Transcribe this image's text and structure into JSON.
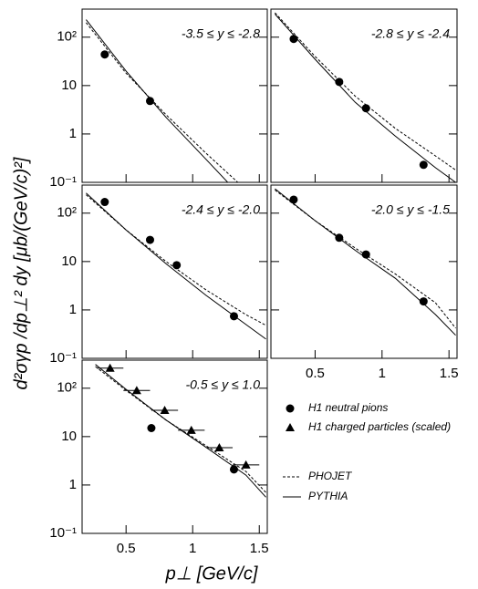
{
  "chart_data": [
    {
      "type": "line",
      "annotation": "-3.5 ≤ y ≤ -2.8",
      "xlim": [
        0.17,
        1.56
      ],
      "ylim": [
        0.1,
        380
      ],
      "log_y": true,
      "xticks": [
        0.5,
        1,
        1.5
      ],
      "yticks": [
        {
          "value": 100,
          "label": "10²"
        },
        10,
        1,
        {
          "value": 0.1,
          "label": "10⁻¹"
        }
      ],
      "ytick_labels": true,
      "xtick_labels": false,
      "series": [
        {
          "name": "PHOJET",
          "color": "#000000",
          "line_style": "dashed",
          "x": [
            0.2,
            0.5,
            0.8,
            1.1,
            1.4
          ],
          "values": [
            200,
            18,
            2.5,
            0.4,
            0.07
          ]
        },
        {
          "name": "PYTHIA",
          "color": "#000000",
          "line_style": "solid",
          "x": [
            0.2,
            0.5,
            0.8,
            1.1,
            1.4
          ],
          "values": [
            230,
            20,
            2.2,
            0.3,
            0.04
          ]
        },
        {
          "name": "H1 neutral pions",
          "color": "#000000",
          "marker": "circle",
          "x": [
            0.34,
            0.68
          ],
          "values": [
            44,
            4.8
          ]
        }
      ]
    },
    {
      "type": "line",
      "annotation": "-2.8 ≤ y ≤ -2.4",
      "xlim": [
        0.17,
        1.56
      ],
      "ylim": [
        0.1,
        380
      ],
      "log_y": true,
      "xticks": [
        0.5,
        1,
        1.5
      ],
      "yticks": [
        {
          "value": 100,
          "label": "10²"
        },
        10,
        1,
        {
          "value": 0.1,
          "label": "10⁻¹"
        }
      ],
      "ytick_labels": false,
      "xtick_labels": false,
      "series": [
        {
          "name": "PHOJET",
          "color": "#000000",
          "line_style": "dashed",
          "x": [
            0.2,
            0.5,
            0.8,
            1.1,
            1.4,
            1.55
          ],
          "values": [
            320,
            40,
            6,
            1.3,
            0.35,
            0.18
          ]
        },
        {
          "name": "PYTHIA",
          "color": "#000000",
          "line_style": "solid",
          "x": [
            0.2,
            0.5,
            0.8,
            1.1,
            1.4,
            1.55
          ],
          "values": [
            300,
            35,
            4.5,
            0.9,
            0.2,
            0.1
          ]
        },
        {
          "name": "H1 neutral pions",
          "color": "#000000",
          "marker": "circle",
          "x": [
            0.34,
            0.68,
            0.88,
            1.31
          ],
          "values": [
            92,
            11.9,
            3.4,
            0.23
          ]
        }
      ]
    },
    {
      "type": "line",
      "annotation": "-2.4 ≤ y ≤ -2.0",
      "xlim": [
        0.17,
        1.56
      ],
      "ylim": [
        0.1,
        380
      ],
      "log_y": true,
      "xticks": [
        0.5,
        1,
        1.5
      ],
      "yticks": [
        {
          "value": 100,
          "label": "10²"
        },
        10,
        1,
        {
          "value": 0.1,
          "label": "10⁻¹"
        }
      ],
      "ytick_labels": true,
      "xtick_labels": false,
      "series": [
        {
          "name": "PHOJET",
          "color": "#000000",
          "line_style": "dashed",
          "x": [
            0.2,
            0.5,
            0.8,
            1.1,
            1.4,
            1.55
          ],
          "values": [
            240,
            45,
            10,
            2.6,
            0.8,
            0.48
          ]
        },
        {
          "name": "PYTHIA",
          "color": "#000000",
          "line_style": "solid",
          "x": [
            0.2,
            0.5,
            0.8,
            1.1,
            1.4,
            1.55
          ],
          "values": [
            260,
            45,
            9,
            2,
            0.5,
            0.25
          ]
        },
        {
          "name": "H1 neutral pions",
          "color": "#000000",
          "marker": "circle",
          "x": [
            0.34,
            0.68,
            0.88,
            1.31
          ],
          "values": [
            170,
            28,
            8.4,
            0.74
          ]
        }
      ]
    },
    {
      "type": "line",
      "annotation": "-2.0 ≤ y ≤ -1.5",
      "xlim": [
        0.17,
        1.56
      ],
      "ylim": [
        0.1,
        380
      ],
      "log_y": true,
      "xticks": [
        0.5,
        1,
        1.5
      ],
      "yticks": [
        {
          "value": 100,
          "label": "10²"
        },
        10,
        1,
        {
          "value": 0.1,
          "label": "10⁻¹"
        }
      ],
      "ytick_labels": false,
      "xtick_labels": true,
      "series": [
        {
          "name": "PHOJET",
          "color": "#000000",
          "line_style": "dashed",
          "x": [
            0.2,
            0.5,
            0.8,
            1.1,
            1.4,
            1.55
          ],
          "values": [
            300,
            70,
            19,
            5.5,
            1.4,
            0.42
          ]
        },
        {
          "name": "PYTHIA",
          "color": "#000000",
          "line_style": "solid",
          "x": [
            0.2,
            0.5,
            0.8,
            1.1,
            1.4,
            1.55
          ],
          "values": [
            320,
            70,
            17,
            4.5,
            0.8,
            0.3
          ]
        },
        {
          "name": "H1 neutral pions",
          "color": "#000000",
          "marker": "circle",
          "x": [
            0.34,
            0.68,
            0.88,
            1.31
          ],
          "values": [
            190,
            31,
            14,
            1.5
          ]
        }
      ]
    },
    {
      "type": "line",
      "annotation": "-0.5 ≤ y ≤ 1.0",
      "xlim": [
        0.17,
        1.56
      ],
      "ylim": [
        0.1,
        380
      ],
      "log_y": true,
      "xticks": [
        0.5,
        1,
        1.5
      ],
      "yticks": [
        {
          "value": 100,
          "label": "10²"
        },
        10,
        1,
        {
          "value": 0.1,
          "label": "10⁻¹"
        }
      ],
      "ytick_labels": true,
      "xtick_labels": true,
      "series": [
        {
          "name": "PHOJET",
          "color": "#000000",
          "line_style": "dashed",
          "x": [
            0.27,
            0.5,
            0.8,
            1.1,
            1.4,
            1.55
          ],
          "values": [
            280,
            90,
            22,
            6.5,
            1.9,
            0.7
          ]
        },
        {
          "name": "PYTHIA",
          "color": "#000000",
          "line_style": "solid",
          "x": [
            0.27,
            0.5,
            0.8,
            1.1,
            1.4,
            1.55
          ],
          "values": [
            310,
            95,
            22,
            6,
            1.6,
            0.56
          ]
        },
        {
          "name": "H1 neutral pions",
          "color": "#000000",
          "marker": "circle",
          "x": [
            0.69,
            1.31
          ],
          "values": [
            15,
            2.1
          ]
        },
        {
          "name": "H1 charged particles (scaled)",
          "color": "#000000",
          "marker": "triangle",
          "x": [
            0.38,
            0.58,
            0.79,
            0.99,
            1.2,
            1.4
          ],
          "xerr": [
            0.1,
            0.1,
            0.1,
            0.1,
            0.1,
            0.1
          ],
          "values": [
            260,
            90,
            35,
            13.5,
            5.9,
            2.6
          ]
        }
      ]
    }
  ],
  "ylabel": "d²σγp /dp⊥² dy  [μb/(GeV/c)²]",
  "xlabel": "p⊥ [GeV/c]"
}
